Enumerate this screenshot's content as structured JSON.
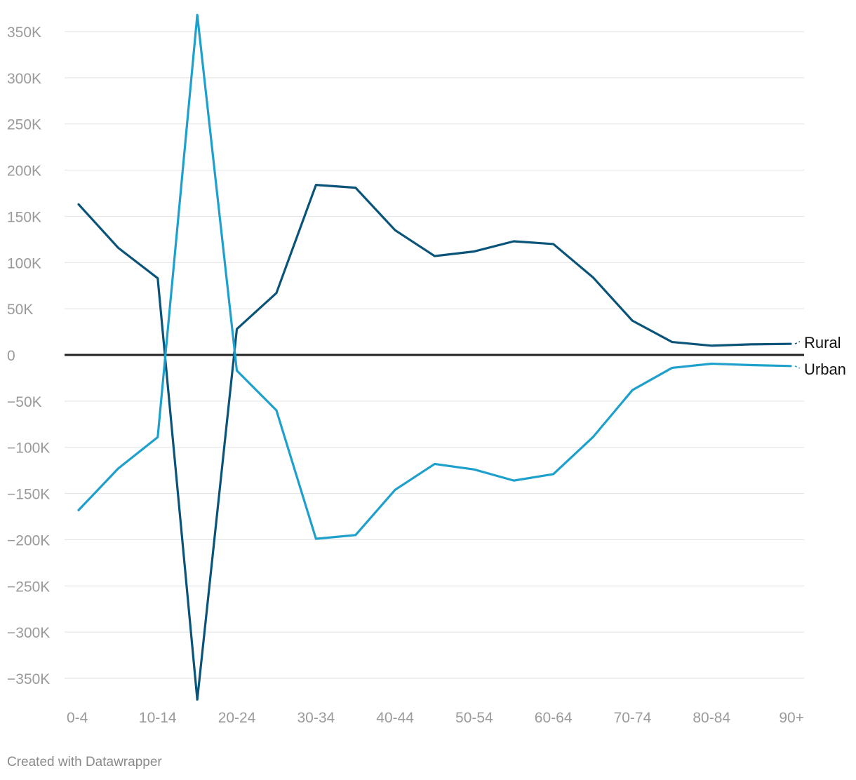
{
  "chart_data": {
    "type": "line",
    "categories": [
      "0-4",
      "5-9",
      "10-14",
      "15-19",
      "20-24",
      "25-29",
      "30-34",
      "35-39",
      "40-44",
      "45-49",
      "50-54",
      "55-59",
      "60-64",
      "65-69",
      "70-74",
      "75-79",
      "80-84",
      "85-89",
      "90+"
    ],
    "x_tick_labels": [
      "0-4",
      "",
      "10-14",
      "",
      "20-24",
      "",
      "30-34",
      "",
      "40-44",
      "",
      "50-54",
      "",
      "60-64",
      "",
      "70-74",
      "",
      "80-84",
      "",
      "90+"
    ],
    "series": [
      {
        "name": "Rural",
        "color": "#0b5479",
        "values": [
          163000,
          116000,
          83000,
          -373000,
          28000,
          67000,
          184000,
          181000,
          135000,
          107000,
          112000,
          123000,
          120000,
          84000,
          37000,
          14000,
          10000,
          11500,
          12000
        ]
      },
      {
        "name": "Urban",
        "color": "#1ea0cc",
        "values": [
          -168000,
          -123000,
          -89000,
          368000,
          -17000,
          -60000,
          -199000,
          -195000,
          -146000,
          -118000,
          -124000,
          -136000,
          -129000,
          -89000,
          -38000,
          -14000,
          -9500,
          -11000,
          -12000
        ]
      }
    ],
    "ylim": [
      -372000,
      368000
    ],
    "y_ticks": [
      350000,
      300000,
      250000,
      200000,
      150000,
      100000,
      50000,
      0,
      -50000,
      -100000,
      -150000,
      -200000,
      -250000,
      -300000,
      -350000
    ],
    "y_tick_labels": [
      "350K",
      "300K",
      "250K",
      "200K",
      "150K",
      "100K",
      "50K",
      "0",
      "−50K",
      "−100K",
      "−150K",
      "−200K",
      "−250K",
      "−300K",
      "−350K"
    ],
    "grid": true,
    "legend": "direct labels at line ends (right)",
    "title": "",
    "xlabel": "",
    "ylabel": ""
  },
  "footer": {
    "credit": "Created with Datawrapper"
  }
}
